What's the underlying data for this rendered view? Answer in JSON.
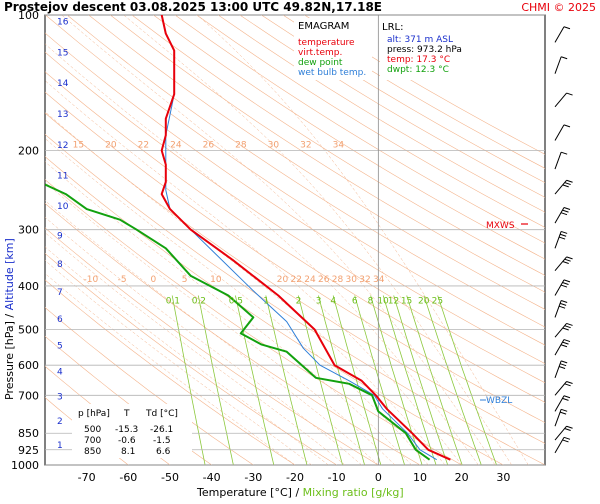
{
  "header": {
    "title": "Prostejov   descent  03.08.2025 13:00 UTC  49.82N,17.18E",
    "credit": "CHMI © 2025"
  },
  "legend": {
    "heading": "EMAGRAM",
    "items": [
      {
        "label": "temperature",
        "color": "#e8000b"
      },
      {
        "label": "virt.temp.",
        "color": "#e8000b"
      },
      {
        "label": "dew point",
        "color": "#12a10e"
      },
      {
        "label": "wet bulb temp.",
        "color": "#2f7fd8"
      }
    ]
  },
  "lrl": {
    "heading": "LRL:",
    "lines": [
      {
        "text": "alt: 371 m ASL",
        "color": "#1a2fcc"
      },
      {
        "text": "press: 973.2 hPa",
        "color": "#000000"
      },
      {
        "text": "temp: 17.3 °C",
        "color": "#e8000b"
      },
      {
        "text": "dwpt: 12.3 °C",
        "color": "#12a10e"
      }
    ]
  },
  "levels_table": {
    "headers": [
      "p [hPa]",
      "T",
      "Td [°C]"
    ],
    "rows": [
      [
        "500",
        "-15.3",
        "-26.1"
      ],
      [
        "700",
        "-0.6",
        "-1.5"
      ],
      [
        "850",
        "8.1",
        "6.6"
      ]
    ]
  },
  "markers": {
    "mxws": "MXWS",
    "wbzl": "WBZL"
  },
  "axes": {
    "ylabel_pressure": "Pressure [hPa]",
    "ylabel_sep": "  /  ",
    "ylabel_altitude": "Altitude [km]",
    "xlabel_temp": "Temperature [°C]",
    "xlabel_sep": "  /  ",
    "xlabel_mix": "Mixing ratio [g/kg]"
  },
  "chart_data": {
    "type": "line",
    "x_range": [
      -80,
      40
    ],
    "y_range_hpa": [
      100,
      1000
    ],
    "y_scale": "log",
    "x_ticks": [
      "-70",
      "-60",
      "-50",
      "-40",
      "-30",
      "-20",
      "-10",
      "0",
      "10",
      "20",
      "30"
    ],
    "pressure_ticks": [
      "100",
      "200",
      "300",
      "400",
      "500",
      "600",
      "700",
      "850",
      "925",
      "1000"
    ],
    "altitude_ticks": [
      "1",
      "2",
      "3",
      "4",
      "5",
      "6",
      "7",
      "8",
      "9",
      "10",
      "11",
      "12",
      "13",
      "14",
      "15",
      "16"
    ],
    "mixing_labels_upper": [
      "20",
      "22",
      "24",
      "26",
      "28",
      "30",
      "32",
      "34"
    ],
    "mixing_labels_lower": [
      "0.1",
      "0.2",
      "0.5",
      "1",
      "2",
      "3",
      "4",
      "6",
      "8",
      "10",
      "12",
      "15",
      "20",
      "25"
    ],
    "adiabat_labels_top": [
      "15",
      "20",
      "22",
      "24",
      "26",
      "28",
      "30",
      "32",
      "34"
    ],
    "adiabat_labels_mid": [
      "-10",
      "-5",
      "0",
      "5",
      "10"
    ],
    "colors": {
      "temperature": "#e8000b",
      "dewpoint": "#12a10e",
      "wetbulb": "#2f7fd8",
      "adiabat": "#f4b48c",
      "mixing": "#8cc83c",
      "grid": "#b4b4b4"
    },
    "series": [
      {
        "name": "temperature",
        "points": [
          [
            17.3,
            973
          ],
          [
            12,
            925
          ],
          [
            8.1,
            850
          ],
          [
            2,
            750
          ],
          [
            -0.6,
            700
          ],
          [
            -4,
            650
          ],
          [
            -10.5,
            600
          ],
          [
            -15.3,
            500
          ],
          [
            -24,
            420
          ],
          [
            -35,
            350
          ],
          [
            -45,
            300
          ],
          [
            -50,
            270
          ],
          [
            -52,
            250
          ],
          [
            -51,
            235
          ],
          [
            -51,
            215
          ],
          [
            -52,
            200
          ],
          [
            -51,
            185
          ],
          [
            -51,
            170
          ],
          [
            -49,
            150
          ],
          [
            -49,
            135
          ],
          [
            -49,
            120
          ],
          [
            -51,
            110
          ],
          [
            -52,
            100
          ]
        ]
      },
      {
        "name": "dew point",
        "points": [
          [
            12.3,
            973
          ],
          [
            9,
            925
          ],
          [
            6.6,
            850
          ],
          [
            0,
            760
          ],
          [
            -1.5,
            700
          ],
          [
            -7,
            660
          ],
          [
            -15,
            640
          ],
          [
            -22,
            560
          ],
          [
            -28,
            540
          ],
          [
            -33,
            510
          ],
          [
            -30,
            470
          ],
          [
            -36,
            420
          ],
          [
            -45,
            380
          ],
          [
            -51,
            330
          ],
          [
            -58,
            300
          ],
          [
            -62,
            285
          ],
          [
            -70,
            270
          ],
          [
            -75,
            250
          ],
          [
            -80,
            238
          ]
        ]
      },
      {
        "name": "wet bulb temp.",
        "points": [
          [
            14,
            973
          ],
          [
            10,
            925
          ],
          [
            7,
            850
          ],
          [
            1,
            750
          ],
          [
            -1,
            700
          ],
          [
            -7,
            650
          ],
          [
            -14,
            600
          ],
          [
            -18,
            550
          ],
          [
            -22,
            480
          ],
          [
            -30,
            410
          ],
          [
            -45,
            300
          ],
          [
            -50,
            270
          ],
          [
            -51,
            245
          ],
          [
            -51,
            215
          ],
          [
            -51,
            185
          ],
          [
            -49,
            150
          ],
          [
            -49,
            130
          ],
          [
            -49,
            120
          ]
        ]
      }
    ]
  }
}
